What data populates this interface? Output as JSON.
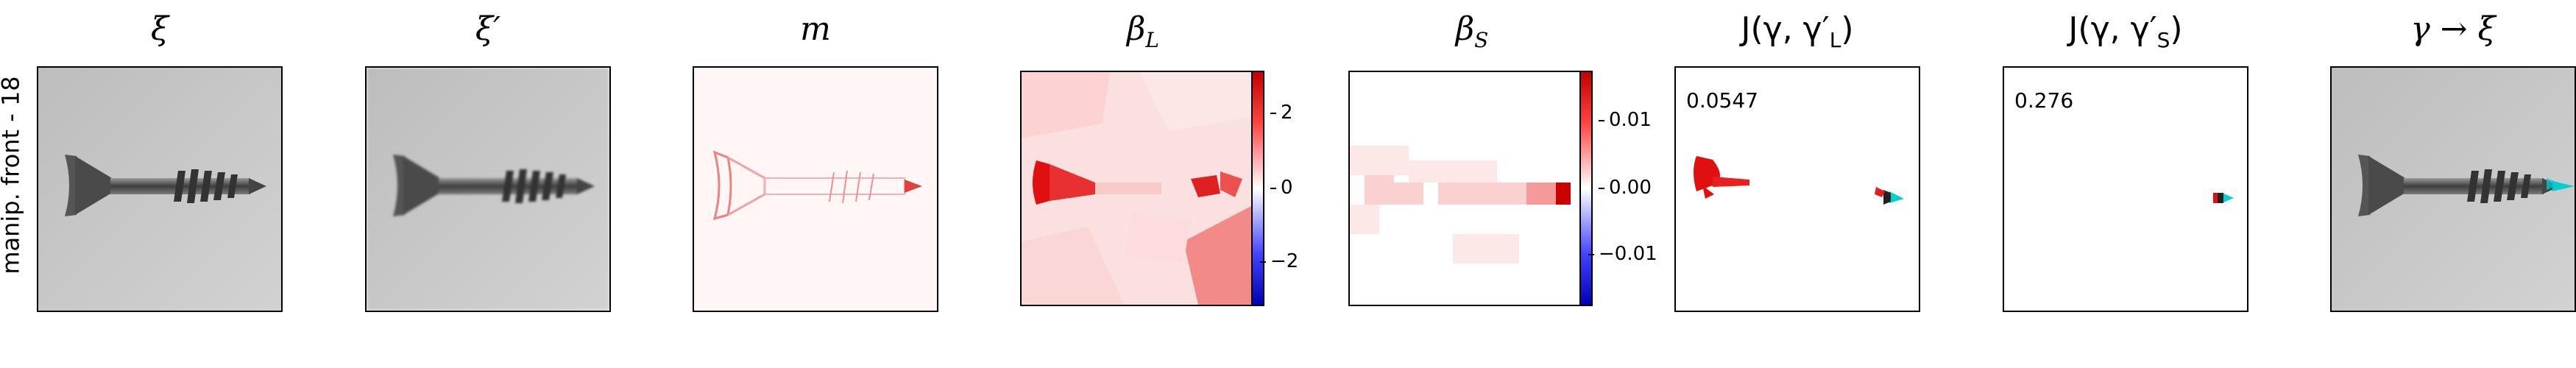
{
  "row_label": "manip. front - 18",
  "panels": [
    {
      "title": "ξ"
    },
    {
      "title": "ξ′"
    },
    {
      "title": "m"
    },
    {
      "title": "β",
      "title_sub": "L",
      "colorbar_ticks": [
        "2",
        "0",
        "−2"
      ]
    },
    {
      "title": "β",
      "title_sub": "S",
      "colorbar_ticks": [
        "0.01",
        "0.00",
        "−0.01"
      ]
    },
    {
      "title": "J(γ, γ′",
      "title_sub": "L",
      "title_end": ")",
      "score": "0.0547"
    },
    {
      "title": "J(γ, γ′",
      "title_sub": "S",
      "title_end": ")",
      "score": "0.276"
    },
    {
      "title": "γ → ξ"
    }
  ],
  "colors": {
    "positive": "#e00000",
    "negative": "#0000cc",
    "overlay": "#00d0d0"
  },
  "icons": [
    "screw-image",
    "screw-image-overlay"
  ]
}
